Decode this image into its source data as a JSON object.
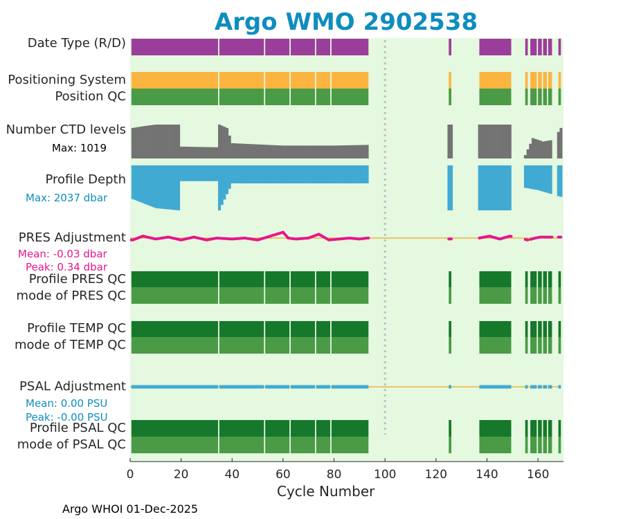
{
  "chart_data": {
    "type": "timeline",
    "title": "Argo WMO 2902538",
    "xlabel": "Cycle Number",
    "xlim": [
      0,
      170
    ],
    "xticks": [
      0,
      20,
      40,
      60,
      80,
      100,
      120,
      140,
      160
    ],
    "footer": "Argo WHOI 01-Dec-2025",
    "rows": [
      {
        "id": "date-type",
        "label": "Date Type (R/D)",
        "color": "#9b3d9b"
      },
      {
        "id": "positioning-system",
        "label": "Positioning System",
        "color": "#fbb440"
      },
      {
        "id": "position-qc",
        "label": "Position QC",
        "color": "#4a9a46"
      },
      {
        "id": "ctd-levels",
        "label": "Number CTD levels",
        "color": "#737373",
        "stat": "Max: 1019"
      },
      {
        "id": "profile-depth",
        "label": "Profile Depth",
        "color": "#41aad2",
        "stat": "Max: 2037 dbar"
      },
      {
        "id": "pres-adjustment",
        "label": "PRES Adjustment",
        "color": "#e6168c",
        "mean": "Mean: -0.03 dbar",
        "peak": "Peak: 0.34 dbar"
      },
      {
        "id": "profile-pres-qc",
        "label": "Profile PRES QC",
        "color": "#15782a"
      },
      {
        "id": "mode-pres-qc",
        "label": "mode of PRES QC",
        "color": "#4a9a46"
      },
      {
        "id": "profile-temp-qc",
        "label": "Profile TEMP QC",
        "color": "#15782a"
      },
      {
        "id": "mode-temp-qc",
        "label": "mode of TEMP QC",
        "color": "#4a9a46"
      },
      {
        "id": "psal-adjustment",
        "label": "PSAL Adjustment",
        "color": "#41aad2",
        "mean": "Mean: 0.00 PSU",
        "peak": "Peak: -0.00 PSU"
      },
      {
        "id": "profile-psal-qc",
        "label": "Profile PSAL QC",
        "color": "#15782a"
      },
      {
        "id": "mode-psal-qc",
        "label": "mode of PSAL QC",
        "color": "#4a9a46"
      }
    ],
    "cycle_segments": [
      [
        0.5,
        34.5
      ],
      [
        35,
        52.5
      ],
      [
        53,
        62.5
      ],
      [
        63,
        72.5
      ],
      [
        73,
        78.5
      ],
      [
        79,
        93.5
      ],
      [
        125,
        126
      ],
      [
        137,
        149.5
      ],
      [
        155,
        156
      ],
      [
        157,
        159.5
      ],
      [
        160,
        161.5
      ],
      [
        162,
        163.5
      ],
      [
        164,
        165.5
      ],
      [
        168,
        169
      ]
    ],
    "missing_cycle_marker": 100,
    "ctd_levels_approx": [
      [
        1,
        0.9
      ],
      [
        5,
        0.95
      ],
      [
        10,
        1.0
      ],
      [
        19,
        1.0
      ],
      [
        20,
        0.35
      ],
      [
        34,
        0.33
      ],
      [
        35,
        1.0
      ],
      [
        38,
        0.9
      ],
      [
        40,
        0.45
      ],
      [
        60,
        0.38
      ],
      [
        80,
        0.38
      ],
      [
        93,
        0.4
      ],
      [
        125,
        1.0
      ],
      [
        137,
        1.0
      ],
      [
        149,
        1.0
      ],
      [
        155,
        0.1
      ],
      [
        158,
        0.6
      ],
      [
        162,
        0.5
      ],
      [
        166,
        0.55
      ],
      [
        169,
        0.9
      ]
    ],
    "profile_depth_approx": [
      [
        1,
        0.75
      ],
      [
        10,
        0.95
      ],
      [
        19,
        1.0
      ],
      [
        20,
        0.35
      ],
      [
        34,
        0.35
      ],
      [
        35,
        1.0
      ],
      [
        40,
        0.4
      ],
      [
        93,
        0.4
      ],
      [
        125,
        1.0
      ],
      [
        137,
        1.0
      ],
      [
        149,
        1.0
      ],
      [
        155,
        0.5
      ],
      [
        160,
        0.55
      ],
      [
        169,
        0.7
      ]
    ],
    "pres_adjustment_approx": [
      [
        1,
        -0.1
      ],
      [
        5,
        0.1
      ],
      [
        10,
        -0.05
      ],
      [
        15,
        0.05
      ],
      [
        20,
        -0.1
      ],
      [
        25,
        0.05
      ],
      [
        30,
        -0.1
      ],
      [
        34,
        0.0
      ],
      [
        40,
        -0.05
      ],
      [
        45,
        0.0
      ],
      [
        50,
        -0.1
      ],
      [
        55,
        0.1
      ],
      [
        60,
        0.3
      ],
      [
        62,
        0.0
      ],
      [
        65,
        -0.05
      ],
      [
        70,
        0.0
      ],
      [
        74,
        0.2
      ],
      [
        78,
        -0.1
      ],
      [
        82,
        -0.05
      ],
      [
        86,
        0.0
      ],
      [
        90,
        -0.05
      ],
      [
        93,
        0.0
      ],
      [
        125,
        -0.05
      ],
      [
        137,
        0.0
      ],
      [
        141,
        0.1
      ],
      [
        145,
        -0.05
      ],
      [
        149,
        0.1
      ],
      [
        156,
        -0.1
      ],
      [
        159,
        0.0
      ],
      [
        161,
        0.05
      ]
    ]
  }
}
